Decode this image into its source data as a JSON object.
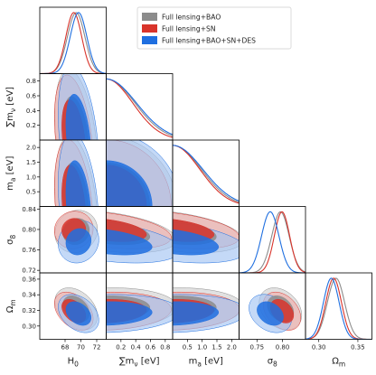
{
  "chart_data": {
    "type": "triangle",
    "parameters": [
      {
        "key": "H0",
        "label": "H",
        "sub": "0",
        "unit": "",
        "range": [
          64.8,
          73.2
        ],
        "ticks": [
          "68",
          "70",
          "72"
        ]
      },
      {
        "key": "mnu",
        "label": "∑m",
        "sub": "ν",
        "unit": " [eV]",
        "range": [
          0.0,
          0.9
        ],
        "ticks": [
          "0.2",
          "0.4",
          "0.6",
          "0.8"
        ]
      },
      {
        "key": "ma",
        "label": "m",
        "sub": "a",
        "unit": " [eV]",
        "range": [
          0.0,
          2.25
        ],
        "ticks": [
          "0.5",
          "1.0",
          "1.5",
          "2.0"
        ]
      },
      {
        "key": "sigma8",
        "label": "σ",
        "sub": "8",
        "unit": "",
        "range": [
          0.715,
          0.845
        ],
        "ticks": [
          "0.75",
          "0.80"
        ]
      },
      {
        "key": "Om",
        "label": "Ω",
        "sub": "m",
        "unit": "",
        "range": [
          0.283,
          0.368
        ],
        "ticks": [
          "0.30",
          "0.35"
        ]
      }
    ],
    "y_ticks": {
      "mnu": [
        "0.2",
        "0.4",
        "0.6",
        "0.8"
      ],
      "ma": [
        "0.5",
        "1.0",
        "1.5",
        "2.0"
      ],
      "sigma8": [
        "0.72",
        "0.76",
        "0.80",
        "0.84"
      ],
      "Om": [
        "0.30",
        "0.32",
        "0.34",
        "0.36"
      ]
    },
    "series": [
      {
        "name": "Full lensing+BAO",
        "color": "#8c8c8c",
        "mean": {
          "H0": 69.4,
          "sigma8": 0.796,
          "Om": 0.322
        },
        "sd": {
          "H0": 1.1,
          "sigma8": 0.017,
          "Om": 0.011
        },
        "upper95": {
          "mnu": 0.78,
          "ma": 1.95
        },
        "corr": {
          "H0-mnu": -0.35,
          "H0-ma": -0.3,
          "H0-sigma8": 0.1,
          "H0-Om": -0.35,
          "mnu-sigma8": -0.4,
          "mnu-Om": 0.1,
          "ma-sigma8": -0.4,
          "ma-Om": 0.1,
          "sigma8-Om": -0.3
        }
      },
      {
        "name": "Full lensing+SN",
        "color": "#d9342b",
        "mean": {
          "H0": 69.1,
          "sigma8": 0.799,
          "Om": 0.319
        },
        "sd": {
          "H0": 1.0,
          "sigma8": 0.015,
          "Om": 0.01
        },
        "upper95": {
          "mnu": 0.72,
          "ma": 1.85
        },
        "corr": {
          "H0-mnu": -0.35,
          "H0-ma": -0.3,
          "H0-sigma8": 0.05,
          "H0-Om": -0.4,
          "mnu-sigma8": -0.4,
          "mnu-Om": 0.1,
          "ma-sigma8": -0.4,
          "ma-Om": 0.1,
          "sigma8-Om": -0.35
        }
      },
      {
        "name": "Full lensing+BAO+SN+DES",
        "color": "#1f6fe0",
        "mean": {
          "H0": 69.7,
          "sigma8": 0.776,
          "Om": 0.316
        },
        "sd": {
          "H0": 1.05,
          "sigma8": 0.017,
          "Om": 0.01
        },
        "upper95": {
          "mnu": 0.82,
          "ma": 2.05
        },
        "corr": {
          "H0-mnu": -0.35,
          "H0-ma": -0.3,
          "H0-sigma8": 0.1,
          "H0-Om": -0.35,
          "mnu-sigma8": -0.4,
          "mnu-Om": 0.1,
          "ma-sigma8": -0.4,
          "ma-Om": 0.1,
          "sigma8-Om": -0.3
        }
      }
    ],
    "legend_position": "top-right"
  }
}
